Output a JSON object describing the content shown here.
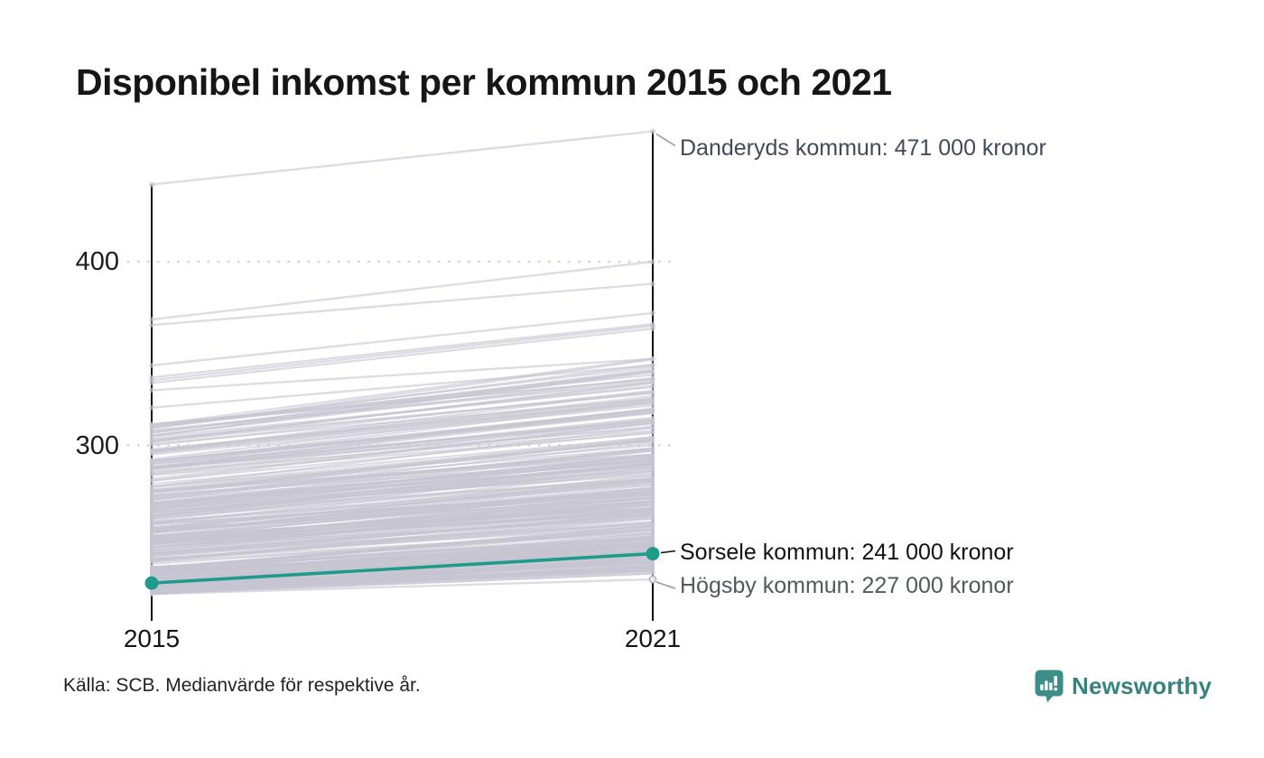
{
  "title": "Disponibel inkomst per kommun 2015 och 2021",
  "source_note": "Källa: SCB. Medianvärde för respektive år.",
  "logo": {
    "text": "Newsworthy",
    "color": "#37837f",
    "icon_color": "#3d8e89"
  },
  "chart_data": {
    "type": "line",
    "subtype": "slope-chart",
    "title": "Disponibel inkomst per kommun 2015 och 2021",
    "x_labels": [
      "2015",
      "2021"
    ],
    "yticks": [
      {
        "label": "400",
        "value": 400
      },
      {
        "label": "300",
        "value": 300
      }
    ],
    "ylim": [
      204,
      475
    ],
    "grid": "dotted-horizontal",
    "unit_note": "tusental kronor (labels shown as '000 kronor')",
    "annotations": {
      "danderyd": {
        "text": "Danderyds kommun: 471 000 kronor",
        "value": 471,
        "color": "#434a57"
      },
      "sorsele": {
        "text": "Sorsele kommun: 241 000 kronor",
        "value": 241,
        "color": "#121212"
      },
      "hogsby": {
        "text": "Högsby kommun: 227 000 kronor",
        "value": 227,
        "color": "#53585f"
      }
    },
    "highlighted_series": {
      "name": "Sorsele kommun",
      "values": [
        225,
        241
      ],
      "color": "#1f9b8c"
    },
    "labeled_series": [
      {
        "name": "Danderyds kommun",
        "values": [
          442,
          471
        ]
      },
      {
        "name": "Högsby kommun",
        "values": [
          219,
          227
        ]
      }
    ],
    "background_series": {
      "description": "Remaining Swedish municipalities, unlabeled gray slope lines (values estimated from pixels)",
      "color": "#c7c5d1",
      "opacity": 0.6,
      "upper_lines": [
        [
          368.5,
          400
        ],
        [
          365.5,
          388
        ],
        [
          343.5,
          372
        ],
        [
          337,
          366
        ],
        [
          335.5,
          365
        ],
        [
          334,
          363.5
        ],
        [
          330,
          347
        ],
        [
          320.5,
          343.5
        ],
        [
          311.5,
          336
        ]
      ],
      "mass": {
        "count": 285,
        "v2015_min": 219,
        "v2015_max": 312,
        "growth_base": 10,
        "growth_slope": 0.16,
        "growth_rand": 13,
        "skew": 1.7,
        "seed": 42
      }
    },
    "axis_color": "#111111",
    "grid_color": "#d9d9d9"
  }
}
